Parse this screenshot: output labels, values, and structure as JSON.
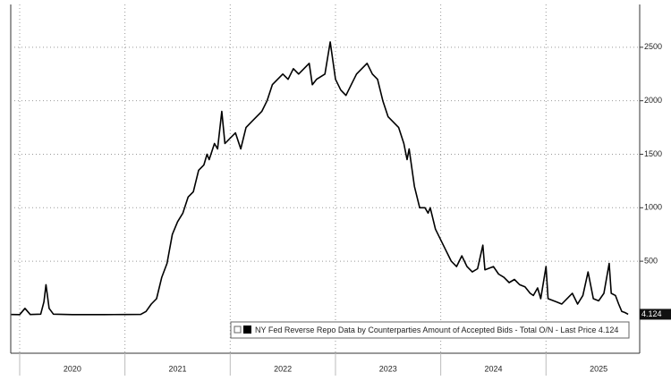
{
  "chart_data": {
    "type": "line",
    "x": [
      2019.92,
      2020.0,
      2020.05,
      2020.1,
      2020.2,
      2020.23,
      2020.25,
      2020.28,
      2020.32,
      2020.5,
      2020.8,
      2021.0,
      2021.15,
      2021.2,
      2021.25,
      2021.3,
      2021.35,
      2021.4,
      2021.45,
      2021.5,
      2021.55,
      2021.6,
      2021.65,
      2021.7,
      2021.75,
      2021.78,
      2021.8,
      2021.85,
      2021.88,
      2021.92,
      2021.95,
      2022.0,
      2022.05,
      2022.1,
      2022.15,
      2022.2,
      2022.25,
      2022.3,
      2022.35,
      2022.4,
      2022.45,
      2022.5,
      2022.55,
      2022.6,
      2022.65,
      2022.7,
      2022.75,
      2022.78,
      2022.82,
      2022.9,
      2022.95,
      2023.0,
      2023.05,
      2023.1,
      2023.15,
      2023.2,
      2023.25,
      2023.3,
      2023.35,
      2023.4,
      2023.45,
      2023.5,
      2023.55,
      2023.6,
      2023.65,
      2023.68,
      2023.7,
      2023.75,
      2023.8,
      2023.85,
      2023.88,
      2023.9,
      2023.95,
      2024.0,
      2024.05,
      2024.1,
      2024.15,
      2024.2,
      2024.25,
      2024.3,
      2024.35,
      2024.4,
      2024.42,
      2024.5,
      2024.55,
      2024.6,
      2024.65,
      2024.7,
      2024.75,
      2024.8,
      2024.85,
      2024.88,
      2024.92,
      2024.95,
      2025.0,
      2025.02,
      2025.1,
      2025.15,
      2025.25,
      2025.3,
      2025.35,
      2025.4,
      2025.45,
      2025.5,
      2025.55,
      2025.6,
      2025.62,
      2025.66,
      2025.69,
      2025.72,
      2025.75,
      2025.78
    ],
    "series": [
      {
        "name": "NY Fed Reverse Repo Data by Counterparties Amount of Accepted Bids - Total O/N - Last Price 4.124",
        "color": "#000000",
        "values": [
          2,
          1,
          60,
          2,
          5,
          120,
          280,
          60,
          5,
          1,
          1,
          2,
          3,
          30,
          100,
          150,
          350,
          480,
          750,
          870,
          950,
          1100,
          1150,
          1350,
          1400,
          1500,
          1450,
          1600,
          1550,
          1900,
          1600,
          1650,
          1700,
          1550,
          1750,
          1800,
          1850,
          1900,
          2000,
          2150,
          2200,
          2250,
          2200,
          2300,
          2250,
          2300,
          2350,
          2150,
          2200,
          2250,
          2550,
          2200,
          2100,
          2050,
          2150,
          2250,
          2300,
          2350,
          2250,
          2200,
          2000,
          1850,
          1800,
          1750,
          1600,
          1450,
          1550,
          1200,
          1000,
          1000,
          950,
          1000,
          800,
          700,
          600,
          500,
          450,
          550,
          450,
          400,
          430,
          650,
          420,
          450,
          380,
          350,
          300,
          330,
          280,
          260,
          200,
          180,
          250,
          150,
          450,
          150,
          120,
          100,
          200,
          100,
          180,
          400,
          150,
          130,
          200,
          480,
          200,
          180,
          100,
          30,
          20,
          4.124
        ]
      }
    ],
    "xlim": [
      2019.915,
      2025.89
    ],
    "xticks": [
      {
        "value": 2020.5,
        "label": "2020"
      },
      {
        "value": 2021.5,
        "label": "2021"
      },
      {
        "value": 2022.5,
        "label": "2022"
      },
      {
        "value": 2023.5,
        "label": "2023"
      },
      {
        "value": 2024.5,
        "label": "2024"
      },
      {
        "value": 2025.5,
        "label": "2025"
      }
    ],
    "ylim": [
      -360,
      2900
    ],
    "yticks": [
      500,
      1000,
      1500,
      2000,
      2500
    ],
    "grid": true
  }
}
